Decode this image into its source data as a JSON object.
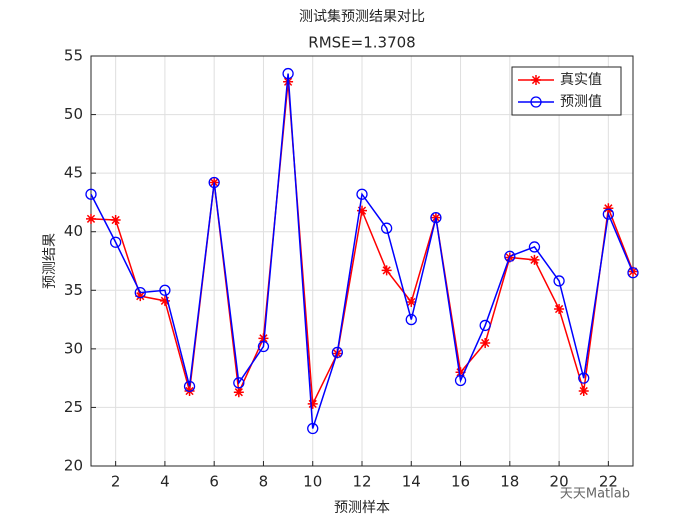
{
  "chart_data": {
    "type": "line",
    "title": "测试集预测结果对比",
    "subtitle": "RMSE=1.3708",
    "x_label": "预测样本",
    "y_label": "预测结果",
    "x": [
      1,
      2,
      3,
      4,
      5,
      6,
      7,
      8,
      9,
      10,
      11,
      12,
      13,
      14,
      15,
      16,
      17,
      18,
      19,
      20,
      21,
      22,
      23
    ],
    "series": [
      {
        "name": "真实值",
        "color": "#ff0000",
        "marker": "asterisk",
        "values": [
          41.1,
          41.0,
          34.5,
          34.1,
          26.4,
          44.2,
          26.3,
          30.9,
          52.8,
          25.3,
          29.6,
          41.8,
          36.7,
          34.0,
          41.2,
          28.0,
          30.5,
          37.8,
          37.6,
          33.4,
          26.4,
          42.0,
          36.6
        ]
      },
      {
        "name": "预测值",
        "color": "#0000ff",
        "marker": "circle",
        "values": [
          43.2,
          39.1,
          34.8,
          35.0,
          26.8,
          44.2,
          27.1,
          30.2,
          53.5,
          23.2,
          29.7,
          43.2,
          40.3,
          32.5,
          41.2,
          27.3,
          32.0,
          37.9,
          38.7,
          35.8,
          27.5,
          41.5,
          36.5
        ]
      }
    ],
    "xlim": [
      1,
      23
    ],
    "xticks": [
      2,
      4,
      6,
      8,
      10,
      12,
      14,
      16,
      18,
      20,
      22
    ],
    "ylim": [
      20,
      55
    ],
    "yticks": [
      20,
      25,
      30,
      35,
      40,
      45,
      50,
      55
    ],
    "grid": true,
    "legend": "northeast",
    "watermark": "天天Matlab"
  }
}
